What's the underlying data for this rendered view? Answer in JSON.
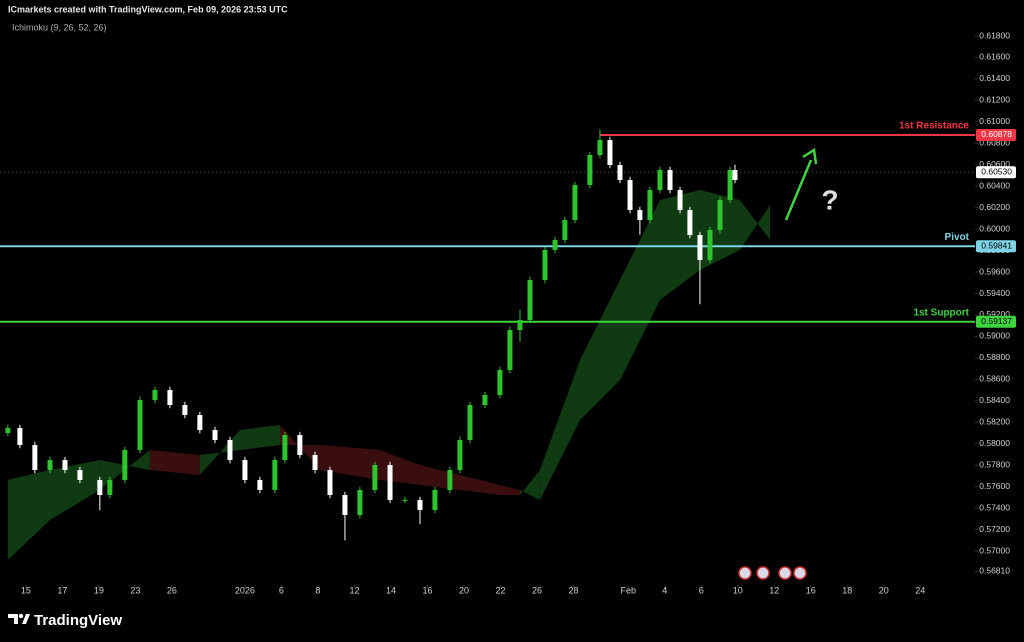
{
  "header": {
    "title": "ICmarkets created with TradingView.com, Feb 09, 2026 23:53 UTC",
    "indicator": "Ichimoku (9, 26, 52, 26)"
  },
  "chart_data": {
    "type": "candlestick",
    "up_color": "#2ec42e",
    "down_color": "#ffffff",
    "x": [
      -0.99,
      -0.33,
      0.49,
      1.32,
      2.14,
      2.96,
      4.05,
      4.6,
      5.42,
      6.25,
      7.07,
      7.89,
      8.71,
      9.53,
      10.36,
      11.18,
      12.0,
      12.82,
      13.64,
      14.19,
      15.01,
      15.84,
      16.66,
      17.48,
      18.3,
      19.12,
      19.95,
      20.77,
      21.59,
      22.41,
      23.23,
      23.78,
      24.33,
      25.15,
      25.97,
      26.52,
      27.07,
      27.62,
      28.44,
      28.99,
      29.53,
      30.08,
      30.9,
      31.45,
      32.0,
      32.55,
      33.1,
      33.64,
      34.19,
      34.74,
      35.29,
      35.84,
      36.38,
      36.93,
      37.48,
      38.03,
      38.58,
      38.85
    ],
    "open": [
      0.581,
      0.58147,
      0.57988,
      0.57755,
      0.57848,
      0.57755,
      0.57662,
      0.57522,
      0.57662,
      0.57942,
      0.58408,
      0.58501,
      0.58361,
      0.58268,
      0.58128,
      0.58035,
      0.57848,
      0.57662,
      0.57569,
      0.57848,
      0.58081,
      0.57895,
      0.57755,
      0.57522,
      0.57336,
      0.57569,
      0.57802,
      0.57476,
      0.57476,
      0.57382,
      0.57569,
      0.57755,
      0.58035,
      0.58361,
      0.58454,
      0.58687,
      0.5906,
      0.59153,
      0.59526,
      0.59806,
      0.59899,
      0.60085,
      0.60411,
      0.60691,
      0.60831,
      0.60598,
      0.60458,
      0.60178,
      0.60085,
      0.60365,
      0.60551,
      0.60365,
      0.60178,
      0.59945,
      0.59712,
      0.59992,
      0.60272,
      0.60551
    ],
    "high": [
      0.58177,
      0.58177,
      0.58018,
      0.57878,
      0.57878,
      0.57785,
      0.57692,
      0.57692,
      0.57972,
      0.58438,
      0.58531,
      0.58531,
      0.58391,
      0.58298,
      0.58158,
      0.58065,
      0.57878,
      0.57692,
      0.57878,
      0.58111,
      0.58111,
      0.57925,
      0.57785,
      0.57552,
      0.57599,
      0.57832,
      0.57832,
      0.57506,
      0.57506,
      0.57599,
      0.57785,
      0.58065,
      0.58391,
      0.58484,
      0.58717,
      0.5909,
      0.5925,
      0.59556,
      0.59836,
      0.59929,
      0.60115,
      0.60441,
      0.60721,
      0.6093,
      0.60861,
      0.60628,
      0.60488,
      0.60208,
      0.60395,
      0.60581,
      0.60581,
      0.60395,
      0.60208,
      0.59975,
      0.60022,
      0.60302,
      0.60581,
      0.606
    ],
    "low": [
      0.5807,
      0.57958,
      0.57725,
      0.57725,
      0.57725,
      0.57632,
      0.5738,
      0.57492,
      0.57632,
      0.57912,
      0.58378,
      0.58331,
      0.58238,
      0.58098,
      0.58005,
      0.57818,
      0.57632,
      0.57539,
      0.57539,
      0.57818,
      0.57865,
      0.57725,
      0.57492,
      0.571,
      0.57306,
      0.57539,
      0.57446,
      0.57446,
      0.5725,
      0.57352,
      0.57539,
      0.57725,
      0.58005,
      0.58331,
      0.58424,
      0.58657,
      0.5895,
      0.59123,
      0.59496,
      0.59776,
      0.59869,
      0.60055,
      0.60381,
      0.60661,
      0.60568,
      0.60428,
      0.60148,
      0.5995,
      0.60055,
      0.60335,
      0.60335,
      0.60148,
      0.59915,
      0.593,
      0.59682,
      0.59962,
      0.60242,
      0.60428
    ],
    "close": [
      0.58147,
      0.57988,
      0.57755,
      0.57848,
      0.57755,
      0.57662,
      0.57522,
      0.57662,
      0.57942,
      0.58408,
      0.58501,
      0.58361,
      0.58268,
      0.58128,
      0.58035,
      0.57848,
      0.57662,
      0.57569,
      0.57848,
      0.58081,
      0.57895,
      0.57755,
      0.57522,
      0.57336,
      0.57569,
      0.57802,
      0.57476,
      0.57476,
      0.57382,
      0.57569,
      0.57755,
      0.58035,
      0.58361,
      0.58454,
      0.58687,
      0.5906,
      0.59153,
      0.59526,
      0.59806,
      0.59899,
      0.60085,
      0.60411,
      0.60691,
      0.60831,
      0.60598,
      0.60458,
      0.60178,
      0.60085,
      0.60365,
      0.60551,
      0.60365,
      0.60178,
      0.59945,
      0.59712,
      0.59992,
      0.60272,
      0.60551,
      0.60458
    ],
    "cloud": {
      "up_color": "#0f3a12",
      "down_color": "#3a0d0f",
      "x": [
        -0.99,
        1.32,
        4.05,
        6.79,
        9.53,
        11.73,
        13.92,
        16.11,
        19.4,
        21.59,
        23.78,
        25.97,
        27.07,
        28.16,
        30.36,
        32.55,
        34.74,
        36.93,
        39.12,
        40.77
      ],
      "span_a": [
        0.57662,
        0.57755,
        0.57848,
        0.57755,
        0.57709,
        0.58128,
        0.58175,
        0.57755,
        0.57662,
        0.57615,
        0.57569,
        0.57522,
        0.57522,
        0.57755,
        0.5878,
        0.59526,
        0.60272,
        0.60365,
        0.60272,
        0.59899
      ],
      "span_b": [
        0.56916,
        0.57289,
        0.57569,
        0.57942,
        0.57895,
        0.57942,
        0.57988,
        0.57988,
        0.57942,
        0.57802,
        0.57709,
        0.57615,
        0.57569,
        0.57476,
        0.58221,
        0.58594,
        0.5934,
        0.59619,
        0.59806,
        0.60225
      ]
    },
    "levels": [
      {
        "name": "1st Resistance",
        "value": 0.60878,
        "color": "#f23645",
        "text_color": "#ffffff",
        "x_start": 31.45
      },
      {
        "name": "Pivot",
        "value": 0.59841,
        "color": "#7fd3e6",
        "text_color": "#000000"
      },
      {
        "name": "1st Support",
        "value": 0.59137,
        "color": "#3fd43f",
        "text_color": "#000000"
      }
    ],
    "last_price": {
      "value": 0.6053,
      "label": "0.60530"
    },
    "annotation": "?",
    "xlim": [
      -1.42,
      52.0
    ],
    "xticks": [
      {
        "value": 0,
        "label": "15"
      },
      {
        "value": 2,
        "label": "17"
      },
      {
        "value": 4,
        "label": "19"
      },
      {
        "value": 6,
        "label": "23"
      },
      {
        "value": 8,
        "label": "26"
      },
      {
        "value": 12,
        "label": "2026"
      },
      {
        "value": 14,
        "label": "6"
      },
      {
        "value": 16,
        "label": "8"
      },
      {
        "value": 18,
        "label": "12"
      },
      {
        "value": 20,
        "label": "14"
      },
      {
        "value": 22,
        "label": "16"
      },
      {
        "value": 24,
        "label": "20"
      },
      {
        "value": 26,
        "label": "22"
      },
      {
        "value": 28,
        "label": "26"
      },
      {
        "value": 30,
        "label": "28"
      },
      {
        "value": 33,
        "label": "Feb"
      },
      {
        "value": 35,
        "label": "4"
      },
      {
        "value": 37,
        "label": "6"
      },
      {
        "value": 39,
        "label": "10"
      },
      {
        "value": 41,
        "label": "12"
      },
      {
        "value": 43,
        "label": "16"
      },
      {
        "value": 45,
        "label": "18"
      },
      {
        "value": 47,
        "label": "20"
      },
      {
        "value": 49,
        "label": "24"
      }
    ],
    "ylim": [
      0.5673,
      0.61968
    ],
    "yticks": [
      {
        "value": 0.5681,
        "label": "0.56810"
      },
      {
        "value": 0.57,
        "label": "0.57000"
      },
      {
        "value": 0.572,
        "label": "0.57200"
      },
      {
        "value": 0.574,
        "label": "0.57400"
      },
      {
        "value": 0.576,
        "label": "0.57600"
      },
      {
        "value": 0.578,
        "label": "0.57800"
      },
      {
        "value": 0.58,
        "label": "0.58000"
      },
      {
        "value": 0.582,
        "label": "0.58200"
      },
      {
        "value": 0.584,
        "label": "0.58400"
      },
      {
        "value": 0.586,
        "label": "0.58600"
      },
      {
        "value": 0.588,
        "label": "0.58800"
      },
      {
        "value": 0.59,
        "label": "0.59000"
      },
      {
        "value": 0.592,
        "label": "0.59200"
      },
      {
        "value": 0.594,
        "label": "0.59400"
      },
      {
        "value": 0.596,
        "label": "0.59600"
      },
      {
        "value": 0.598,
        "label": "0.59800"
      },
      {
        "value": 0.6,
        "label": "0.60000"
      },
      {
        "value": 0.602,
        "label": "0.60200"
      },
      {
        "value": 0.604,
        "label": "0.60400"
      },
      {
        "value": 0.606,
        "label": "0.60600"
      },
      {
        "value": 0.608,
        "label": "0.60800"
      },
      {
        "value": 0.61,
        "label": "0.61000"
      },
      {
        "value": 0.612,
        "label": "0.61200"
      },
      {
        "value": 0.614,
        "label": "0.61400"
      },
      {
        "value": 0.616,
        "label": "0.61600"
      },
      {
        "value": 0.618,
        "label": "0.61800"
      }
    ],
    "grid": false
  },
  "footer": {
    "logo": "TradingView"
  }
}
